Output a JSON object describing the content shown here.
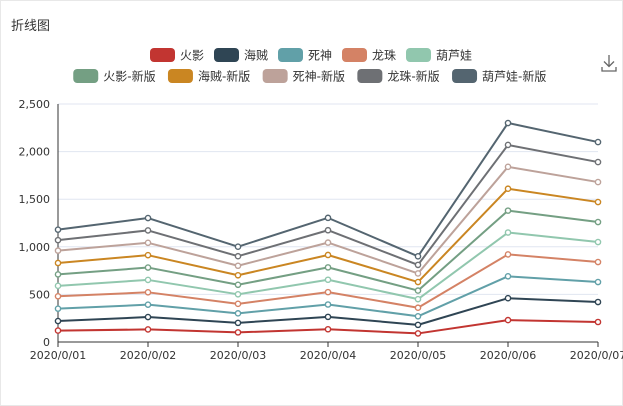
{
  "panel": {
    "title": "折线图"
  },
  "toolbar": {
    "download_icon": "download-icon"
  },
  "chart_data": {
    "type": "line",
    "title": "",
    "xlabel": "",
    "ylabel": "",
    "categories": [
      "2020/0/01",
      "2020/0/02",
      "2020/0/03",
      "2020/0/04",
      "2020/0/05",
      "2020/0/06",
      "2020/0/07"
    ],
    "ylim": [
      0,
      2500
    ],
    "yticks": [
      "0",
      "500",
      "1,000",
      "1,500",
      "2,000",
      "2,500"
    ],
    "grid": true,
    "legend_position": "top-center",
    "stacked": true,
    "series": [
      {
        "name": "火影",
        "color": "#c23531",
        "values": [
          120,
          132,
          101,
          134,
          90,
          230,
          210
        ]
      },
      {
        "name": "海贼",
        "color": "#2f4554",
        "values": [
          100,
          130,
          100,
          130,
          90,
          230,
          210
        ]
      },
      {
        "name": "死神",
        "color": "#61a0a8",
        "values": [
          130,
          130,
          100,
          130,
          90,
          230,
          210
        ]
      },
      {
        "name": "龙珠",
        "color": "#d48265",
        "values": [
          130,
          130,
          100,
          130,
          90,
          230,
          210
        ]
      },
      {
        "name": "葫芦娃",
        "color": "#91c7ae",
        "values": [
          110,
          130,
          100,
          130,
          90,
          230,
          210
        ]
      },
      {
        "name": "火影-新版",
        "color": "#749f83",
        "values": [
          120,
          130,
          100,
          130,
          90,
          230,
          210
        ]
      },
      {
        "name": "海贼-新版",
        "color": "#ca8622",
        "values": [
          120,
          130,
          100,
          130,
          90,
          230,
          210
        ]
      },
      {
        "name": "死神-新版",
        "color": "#bda29a",
        "values": [
          130,
          130,
          100,
          130,
          90,
          230,
          210
        ]
      },
      {
        "name": "龙珠-新版",
        "color": "#6e7074",
        "values": [
          110,
          130,
          100,
          130,
          90,
          230,
          210
        ]
      },
      {
        "name": "葫芦娃-新版",
        "color": "#546570",
        "values": [
          110,
          130,
          100,
          130,
          90,
          230,
          210
        ]
      }
    ]
  }
}
